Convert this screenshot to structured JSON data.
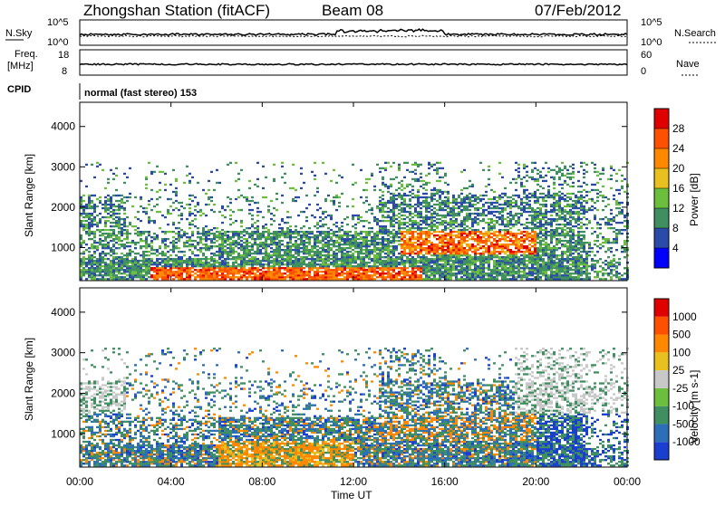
{
  "header": {
    "station": "Zhongshan Station (fitACF)",
    "beam": "Beam 08",
    "date": "07/Feb/2012"
  },
  "noise_panel": {
    "left_label": "N.Sky",
    "right_label": "N.Search",
    "left_ticks": [
      "10^5",
      "10^0"
    ],
    "right_ticks": [
      "10^5",
      "10^0"
    ]
  },
  "freq_panel": {
    "left_label_1": "Freq.",
    "left_label_2": "[MHz]",
    "right_label": "Nave",
    "left_ticks": [
      "18",
      "8"
    ],
    "right_ticks": [
      "60",
      "0"
    ]
  },
  "cpid": {
    "label": "CPID",
    "text": "normal (fast stereo) 153"
  },
  "x_axis": {
    "title": "Time UT",
    "ticks": [
      "00:00",
      "04:00",
      "08:00",
      "12:00",
      "16:00",
      "20:00",
      "00:00"
    ]
  },
  "chart_data": [
    {
      "type": "heatmap",
      "name": "power",
      "ylabel": "Slant Range [km]",
      "yticks": [
        "1000",
        "2000",
        "3000",
        "4000"
      ],
      "ylim": [
        180,
        4600
      ],
      "xlim_hours": [
        0,
        24
      ],
      "colorbar": {
        "label": "Power [dB]",
        "ticks": [
          "4",
          "8",
          "12",
          "16",
          "20",
          "24",
          "28"
        ],
        "colors": [
          "#0000ff",
          "#2a4ba8",
          "#3f8f60",
          "#6cbf3c",
          "#e8c020",
          "#ff8800",
          "#ff5000",
          "#e00000"
        ]
      }
    },
    {
      "type": "heatmap",
      "name": "velocity",
      "ylabel": "Slant Range [km]",
      "yticks": [
        "1000",
        "2000",
        "3000",
        "4000"
      ],
      "ylim": [
        180,
        4600
      ],
      "xlim_hours": [
        0,
        24
      ],
      "colorbar": {
        "label": "Velocity [m s-1]",
        "ticks": [
          "1000",
          "500",
          "100",
          "25",
          "-25",
          "-100",
          "-500",
          "-1000"
        ],
        "colors": [
          "#1a3fd0",
          "#2c6eb8",
          "#3f8f60",
          "#6cbf3c",
          "#c8c8c8",
          "#e8c020",
          "#ff8800",
          "#ff5000",
          "#e00000"
        ]
      }
    }
  ]
}
